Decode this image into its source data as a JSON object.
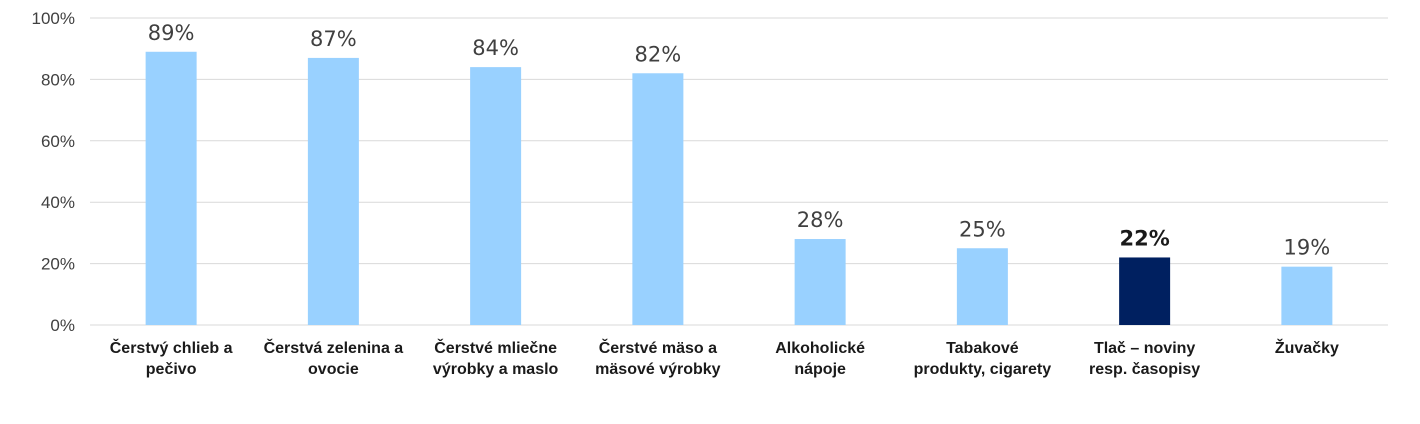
{
  "chart_data": {
    "type": "bar",
    "title": "",
    "xlabel": "",
    "ylabel": "",
    "ylim": [
      0,
      100
    ],
    "yticks": [
      "0%",
      "20%",
      "40%",
      "60%",
      "80%",
      "100%"
    ],
    "grid": true,
    "categories": [
      [
        "Čerstvý chlieb a",
        "pečivo"
      ],
      [
        "Čerstvá zelenina a",
        "ovocie"
      ],
      [
        "Čerstvé mliečne",
        "výrobky a maslo"
      ],
      [
        "Čerstvé mäso a",
        "mäsové výrobky"
      ],
      [
        "Alkoholické",
        "nápoje"
      ],
      [
        "Tabakové",
        "produkty, cigarety"
      ],
      [
        "Tlač – noviny",
        "resp. časopisy"
      ],
      [
        "Žuvačky"
      ]
    ],
    "values": [
      89,
      87,
      84,
      82,
      28,
      25,
      22,
      19
    ],
    "data_labels": [
      "89%",
      "87%",
      "84%",
      "82%",
      "28%",
      "25%",
      "22%",
      "19%"
    ],
    "highlight_index": 6,
    "colors": {
      "bar": "#99D1FF",
      "highlight": "#002060",
      "grid": "#D9D9D9"
    }
  }
}
